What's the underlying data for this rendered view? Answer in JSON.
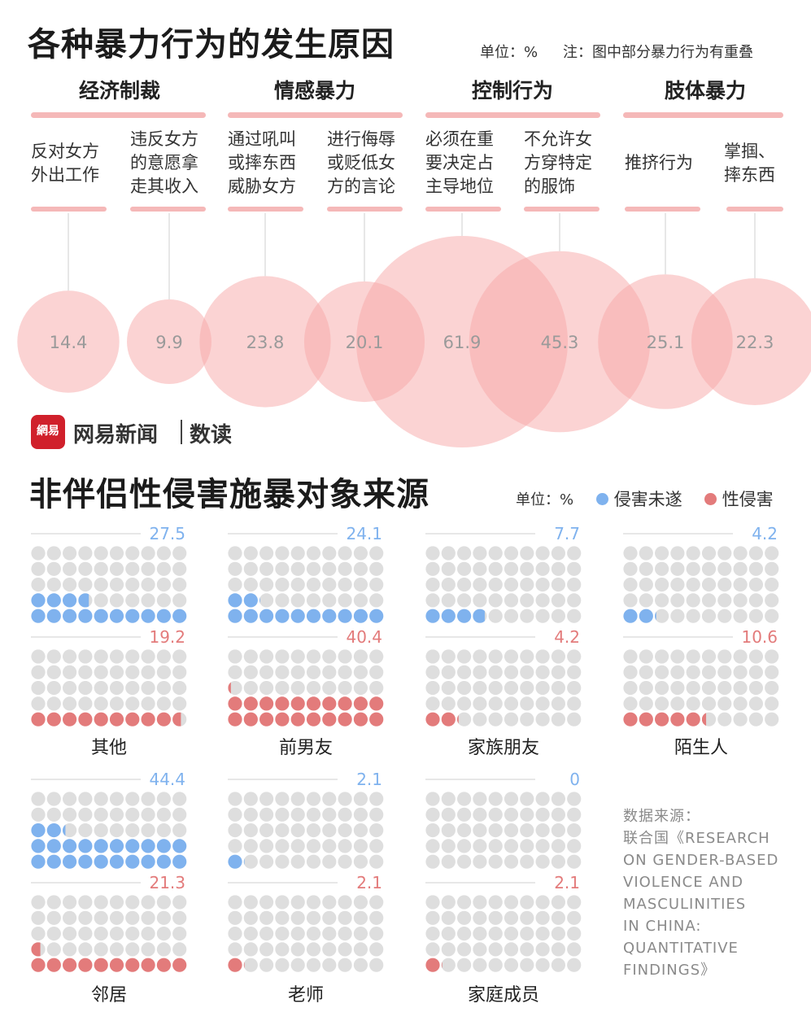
{
  "top": {
    "title": "各种暴力行为的发生原因",
    "unit": "单位：%",
    "note": "注：图中部分暴力行为有重叠",
    "categories": [
      "经济制裁",
      "情感暴力",
      "控制行为",
      "肢体暴力"
    ]
  },
  "chart_data": [
    {
      "type": "bubble",
      "title": "各种暴力行为的发生原因",
      "unit": "%",
      "groups": [
        "经济制裁",
        "经济制裁",
        "情感暴力",
        "情感暴力",
        "控制行为",
        "控制行为",
        "肢体暴力",
        "肢体暴力"
      ],
      "categories": [
        "反对女方外出工作",
        "违反女方的意愿拿走其收入",
        "通过吼叫或摔东西威胁女方",
        "进行侮辱或贬低女方的言论",
        "必须在重要决定占主导地位",
        "不允许女方穿特定的服饰",
        "推挤行为",
        "掌掴、摔东西"
      ],
      "label_lines": [
        [
          "反对女方",
          "外出工作"
        ],
        [
          "违反女方",
          "的意愿拿",
          "走其收入"
        ],
        [
          "通过吼叫",
          "或摔东西",
          "威胁女方"
        ],
        [
          "进行侮辱",
          "或贬低女",
          "方的言论"
        ],
        [
          "必须在重",
          "要决定占",
          "主导地位"
        ],
        [
          "不允许女",
          "方穿特定",
          "的服饰"
        ],
        [
          "推挤行为"
        ],
        [
          "掌掴、",
          "摔东西"
        ]
      ],
      "values": [
        14.4,
        9.9,
        23.8,
        20.1,
        61.9,
        45.3,
        25.1,
        22.3
      ],
      "value_labels": [
        "14.4",
        "9.9",
        "23.8",
        "20.1",
        "61.9",
        "45.3",
        "25.1",
        "22.3"
      ],
      "color": "#f7a8a8"
    },
    {
      "type": "waffle",
      "title": "非伴侣性侵害施暴对象来源",
      "unit": "%",
      "categories": [
        "其他",
        "前男友",
        "家族朋友",
        "陌生人",
        "邻居",
        "老师",
        "家庭成员"
      ],
      "series": [
        {
          "name": "侵害未遂",
          "color": "#7fb2ee",
          "values": [
            27.5,
            24.1,
            7.7,
            4.2,
            44.4,
            2.1,
            0
          ],
          "labels": [
            "27.5",
            "24.1",
            "7.7",
            "4.2",
            "44.4",
            "2.1",
            "0"
          ]
        },
        {
          "name": "性侵害",
          "color": "#e37b7b",
          "values": [
            19.2,
            40.4,
            4.2,
            10.6,
            21.3,
            2.1,
            2.1
          ],
          "labels": [
            "19.2",
            "40.4",
            "4.2",
            "10.6",
            "21.3",
            "2.1",
            "2.1"
          ]
        }
      ],
      "empty_color": "#dedede"
    }
  ],
  "brand": {
    "logo_text": "網易",
    "name": "网易新闻",
    "section": "数读"
  },
  "bottom": {
    "title": "非伴侣性侵害施暴对象来源",
    "unit": "单位：%",
    "legend": [
      {
        "label": "侵害未遂",
        "color": "#7fb2ee"
      },
      {
        "label": "性侵害",
        "color": "#e37b7b"
      }
    ]
  },
  "source": {
    "lines": [
      "数据来源：",
      "联合国《RESEARCH",
      "ON GENDER-BASED",
      "VIOLENCE AND",
      "MASCULINITIES",
      "IN CHINA:",
      "QUANTITATIVE",
      "FINDINGS》"
    ]
  }
}
